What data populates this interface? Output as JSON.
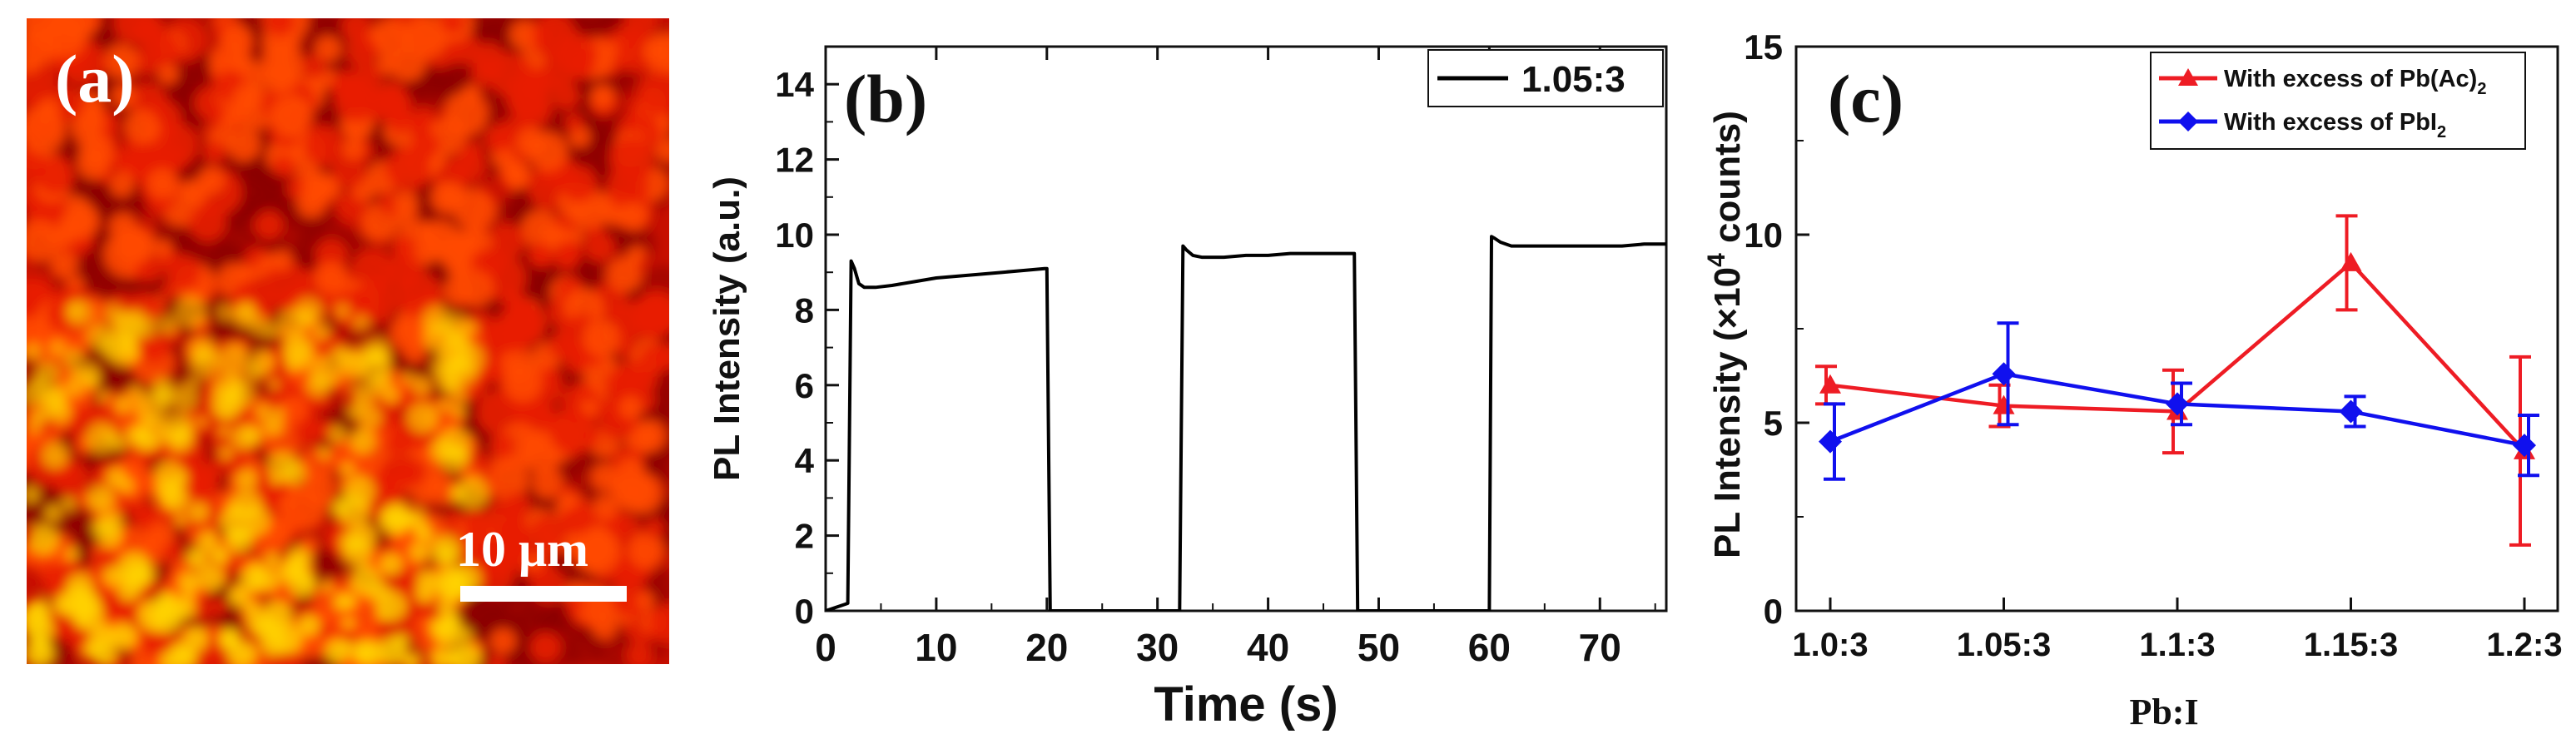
{
  "panel_a": {
    "label": "(a)",
    "scale_bar_text": "10 μm",
    "colors": {
      "dark": "#8b0000",
      "mid": "#e81e00",
      "bright": "#ff4a00",
      "yellow": "#ffd400"
    }
  },
  "chart_data": [
    {
      "type": "line",
      "panel_label": "(b)",
      "xlabel": "Time (s)",
      "ylabel": "PL Intensity (a.u.)",
      "xlim": [
        0,
        76
      ],
      "ylim": [
        0,
        15
      ],
      "x_ticks": [
        0,
        10,
        20,
        30,
        40,
        50,
        60,
        70
      ],
      "y_ticks": [
        0,
        2,
        4,
        6,
        8,
        10,
        12,
        14
      ],
      "legend_position": "top-right",
      "series": [
        {
          "name": "1.05:3",
          "color": "#000000",
          "x": [
            0,
            2.0,
            2.3,
            2.6,
            3.0,
            3.5,
            4.5,
            6,
            8,
            10,
            12,
            14,
            16,
            18,
            19.8,
            20.0,
            20.3,
            25,
            30,
            32.0,
            32.3,
            32.6,
            33.2,
            34,
            36,
            38,
            40,
            42,
            44,
            46,
            47.8,
            48.1,
            48.4,
            52,
            56,
            60.0,
            60.2,
            60.5,
            61.0,
            62,
            64,
            66,
            68,
            70,
            72,
            74,
            76
          ],
          "y": [
            0,
            0.2,
            9.3,
            9.1,
            8.7,
            8.6,
            8.6,
            8.65,
            8.75,
            8.85,
            8.9,
            8.95,
            9.0,
            9.05,
            9.1,
            9.1,
            0,
            0,
            0,
            0,
            9.7,
            9.6,
            9.45,
            9.4,
            9.4,
            9.45,
            9.45,
            9.5,
            9.5,
            9.5,
            9.5,
            0,
            0,
            0,
            0,
            0,
            9.95,
            9.9,
            9.8,
            9.7,
            9.7,
            9.7,
            9.7,
            9.7,
            9.7,
            9.75,
            9.75
          ]
        }
      ]
    },
    {
      "type": "line",
      "panel_label": "(c)",
      "xlabel": "Pb:I",
      "ylabel": "PL Intensity (×10",
      "ylabel_sup": "4",
      "ylabel_end": " counts)",
      "categories": [
        "1.0:3",
        "1.05:3",
        "1.1:3",
        "1.15:3",
        "1.2:3"
      ],
      "ylim": [
        0,
        15
      ],
      "y_ticks": [
        0,
        5,
        10,
        15
      ],
      "legend_position": "top-right",
      "series": [
        {
          "name": "With excess of Pb(Ac)",
          "name_sub": "2",
          "color": "#ee1c24",
          "marker": "triangle",
          "values": [
            6.0,
            5.45,
            5.3,
            9.25,
            4.25
          ],
          "errors": [
            0.5,
            0.55,
            1.1,
            1.25,
            2.5
          ]
        },
        {
          "name": "With excess of PbI",
          "name_sub": "2",
          "color": "#1010ee",
          "marker": "diamond",
          "values": [
            4.5,
            6.3,
            5.5,
            5.3,
            4.4
          ],
          "errors": [
            1.0,
            1.35,
            0.55,
            0.4,
            0.8
          ]
        }
      ]
    }
  ]
}
